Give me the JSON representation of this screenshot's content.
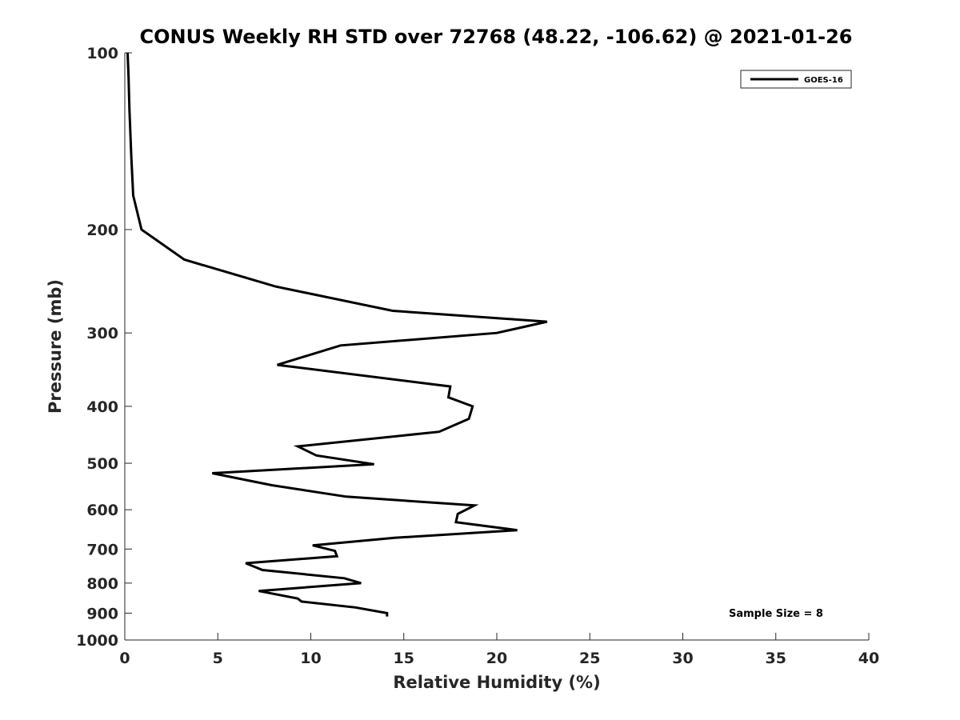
{
  "chart_data": {
    "type": "line",
    "title": "CONUS Weekly RH STD over 72768 (48.22, -106.62) @ 2021-01-26",
    "xlabel": "Relative Humidity (%)",
    "ylabel": "Pressure (mb)",
    "xlim": [
      0,
      40
    ],
    "ylim": [
      100,
      1000
    ],
    "y_scale": "log",
    "y_reversed": true,
    "grid": false,
    "x_ticks": [
      "0",
      "5",
      "10",
      "15",
      "20",
      "25",
      "30",
      "35",
      "40"
    ],
    "y_ticks": [
      "100",
      "200",
      "300",
      "400",
      "500",
      "600",
      "700",
      "800",
      "900",
      "1000"
    ],
    "legend_position": "top-right",
    "annotation": "Sample Size = 8",
    "series": [
      {
        "name": "GOES-16",
        "color": "#000000",
        "x": [
          0.15,
          0.2,
          0.25,
          0.35,
          0.45,
          0.9,
          3.2,
          8.1,
          14.4,
          22.7,
          20.0,
          11.6,
          8.2,
          17.5,
          17.4,
          18.7,
          18.5,
          16.9,
          9.3,
          10.3,
          13.4,
          4.7,
          7.9,
          11.9,
          18.8,
          17.9,
          17.8,
          21.1,
          14.5,
          10.1,
          11.3,
          11.4,
          6.5,
          7.4,
          11.8,
          12.7,
          7.2,
          9.3,
          9.5,
          12.4,
          14.1,
          14.1
        ],
        "y": [
          100,
          110,
          125,
          150,
          175,
          200,
          225,
          250,
          275,
          287,
          300,
          315,
          340,
          370,
          386,
          400,
          420,
          442,
          468,
          485,
          502,
          520,
          545,
          570,
          590,
          610,
          630,
          650,
          670,
          690,
          705,
          720,
          740,
          760,
          785,
          800,
          825,
          850,
          860,
          880,
          900,
          912
        ]
      }
    ]
  }
}
